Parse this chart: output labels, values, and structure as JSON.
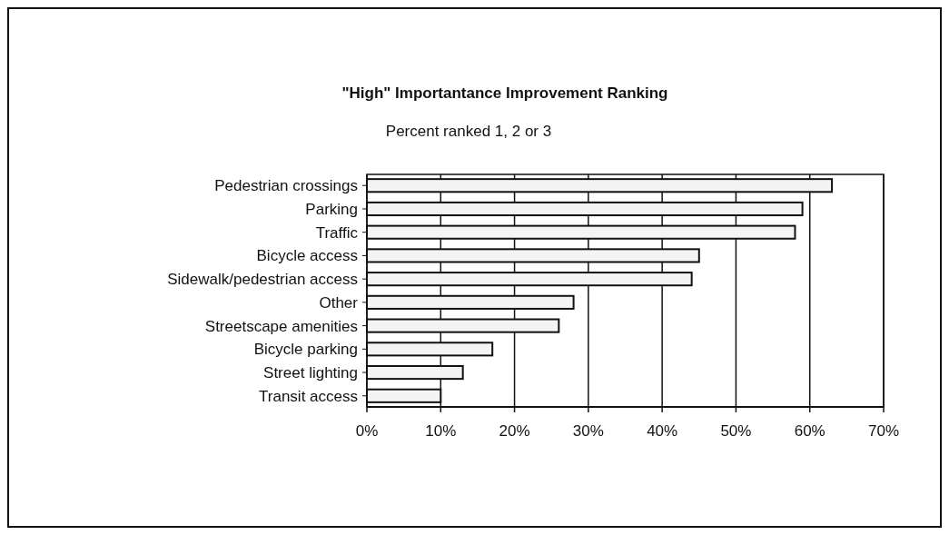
{
  "chart_data": {
    "type": "bar",
    "orientation": "horizontal",
    "title": "\"High\" Importantance Improvement Ranking",
    "subtitle": "Percent ranked 1, 2 or 3",
    "categories": [
      "Pedestrian crossings",
      "Parking",
      "Traffic",
      "Bicycle access",
      "Sidewalk/pedestrian access",
      "Other",
      "Streetscape amenities",
      "Bicycle parking",
      "Street lighting",
      "Transit access"
    ],
    "values": [
      63,
      59,
      58,
      45,
      44,
      28,
      26,
      17,
      13,
      10
    ],
    "color": "#f4f4f4",
    "xlim": [
      0,
      70
    ],
    "xticks": [
      {
        "value": 0,
        "label": "0%"
      },
      {
        "value": 10,
        "label": "10%"
      },
      {
        "value": 20,
        "label": "20%"
      },
      {
        "value": 30,
        "label": "30%"
      },
      {
        "value": 40,
        "label": "40%"
      },
      {
        "value": 50,
        "label": "50%"
      },
      {
        "value": 60,
        "label": "60%"
      },
      {
        "value": 70,
        "label": "70%"
      }
    ],
    "grid": "x"
  }
}
